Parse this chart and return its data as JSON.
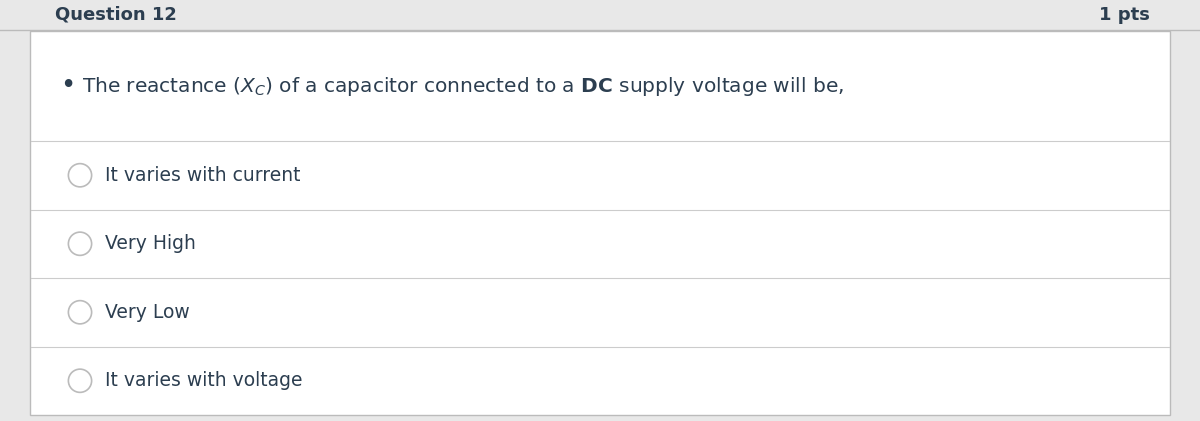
{
  "background_color": "#ffffff",
  "page_bg_color": "#e8e8e8",
  "outer_border_color": "#bbbbbb",
  "header_bg_color": "#e8e8e8",
  "header_border_color": "#bbbbbb",
  "text_color": "#2c3e50",
  "divider_color": "#cccccc",
  "options": [
    "It varies with current",
    "Very High",
    "Very Low",
    "It varies with voltage"
  ],
  "font_size_question": 14.5,
  "font_size_options": 13.5,
  "font_size_header": 13,
  "header_text": "Question 12",
  "header_pts": "1 pts",
  "circle_color": "#bbbbbb",
  "option_text_color": "#2c3e50"
}
